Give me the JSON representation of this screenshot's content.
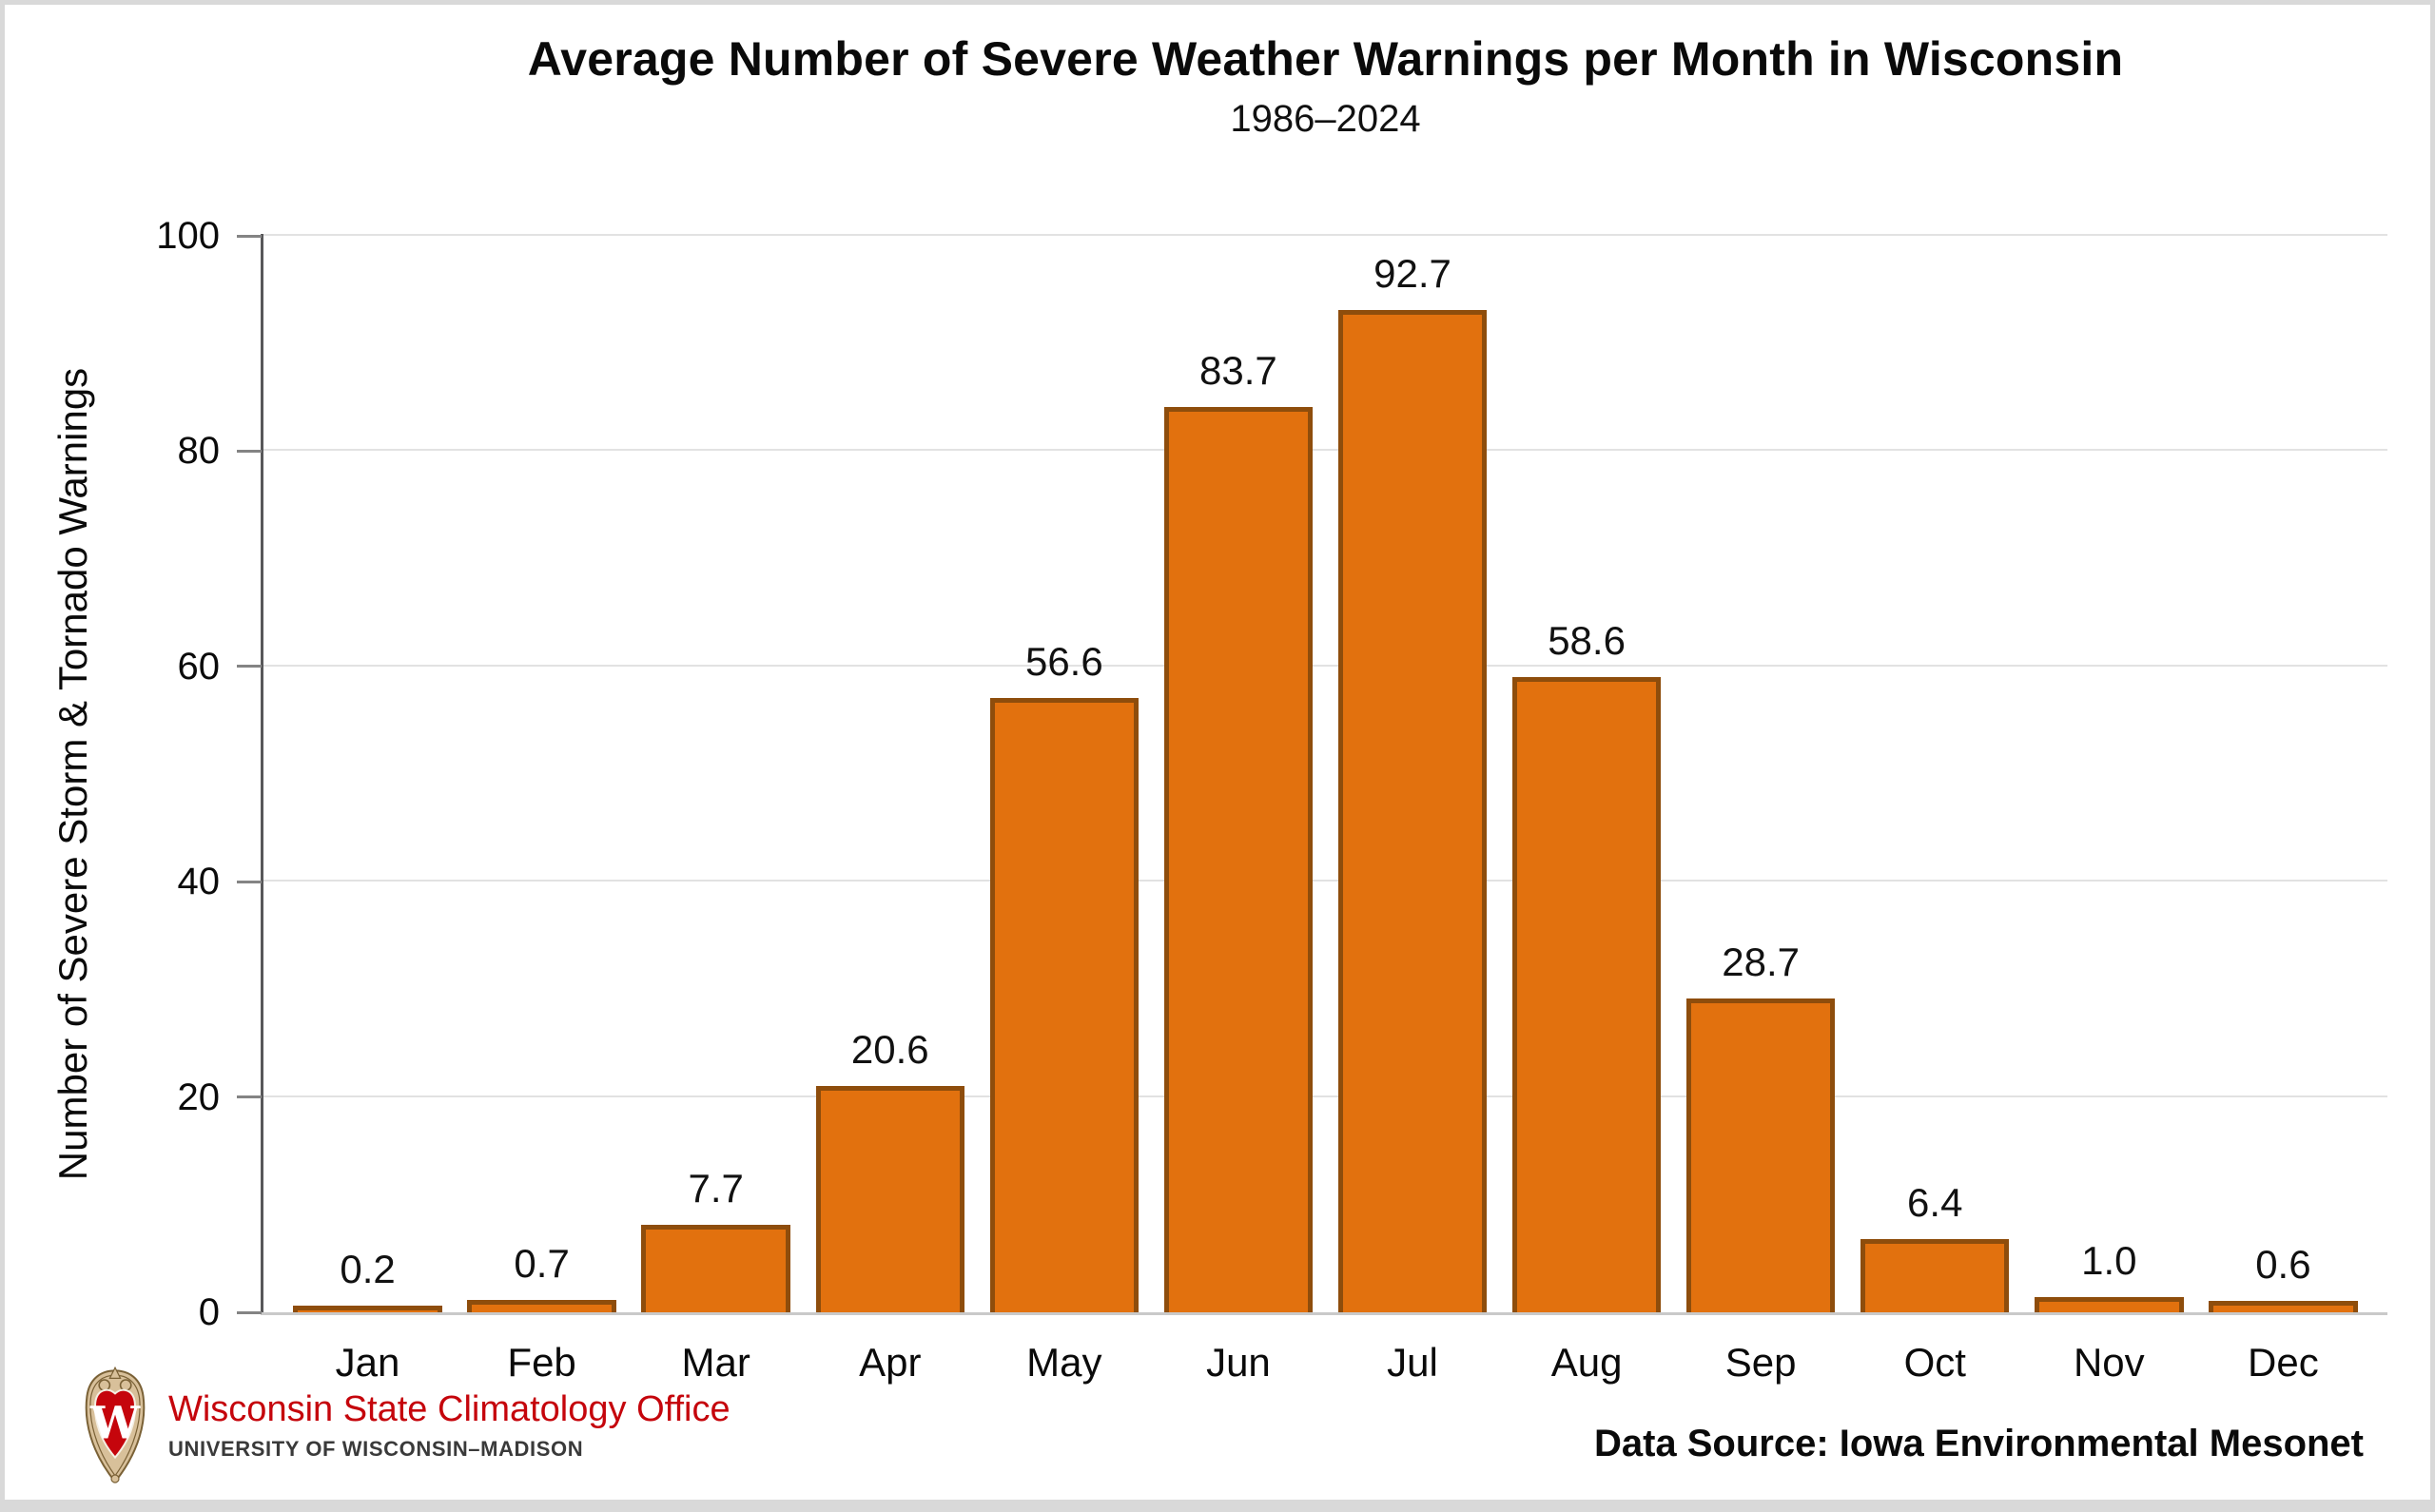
{
  "chart_data": {
    "type": "bar",
    "title": "Average Number of Severe Weather Warnings per Month in Wisconsin",
    "subtitle": "1986–2024",
    "categories": [
      "Jan",
      "Feb",
      "Mar",
      "Apr",
      "May",
      "Jun",
      "Jul",
      "Aug",
      "Sep",
      "Oct",
      "Nov",
      "Dec"
    ],
    "values": [
      0.2,
      0.7,
      7.7,
      20.6,
      56.6,
      83.7,
      92.7,
      58.6,
      28.7,
      6.4,
      1.0,
      0.6
    ],
    "value_labels": [
      "0.2",
      "0.7",
      "7.7",
      "20.6",
      "56.6",
      "83.7",
      "92.7",
      "58.6",
      "28.7",
      "6.4",
      "1.0",
      "0.6"
    ],
    "xlabel": "",
    "ylabel": "Number of Severe Storm & Tornado Warnings",
    "ylim": [
      0,
      100
    ],
    "yticks": [
      0,
      20,
      40,
      60,
      80,
      100
    ],
    "grid": true,
    "legend": "none",
    "bar_color": "#e2710e",
    "bar_border_color": "#8e4d0c"
  },
  "footer": {
    "org_name": "Wisconsin State Climatology Office",
    "org_subname": "UNIVERSITY OF WISCONSIN–MADISON",
    "data_source": "Data Source: Iowa Environmental Mesonet",
    "crest_letter": "W"
  },
  "colors": {
    "uw_red": "#c5050c",
    "crest_tan": "#d8c09a",
    "crest_outline": "#7a6136",
    "axis_line": "#58585a",
    "baseline": "#c9c9c9",
    "gridline": "#e2e2e2"
  }
}
